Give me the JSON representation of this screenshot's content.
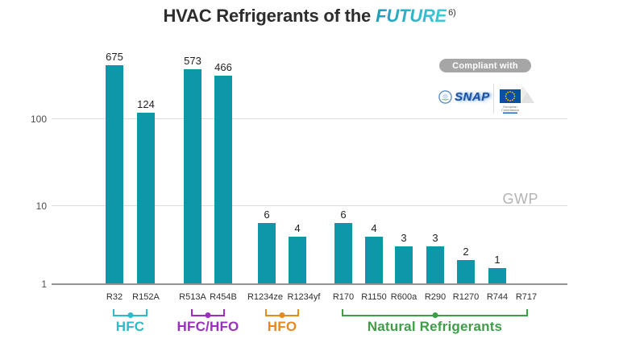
{
  "title": {
    "prefix": "HVAC Refrigerants of the",
    "highlight": "FUTURE",
    "superscript": "6)",
    "highlight_colors": [
      "#1b9dbb",
      "#45c8d8"
    ]
  },
  "badge": {
    "label": "Compliant with"
  },
  "logos": {
    "snap": {
      "label": "SNAP"
    },
    "eu": {
      "caption_line1": "European",
      "caption_line2": "Commission"
    }
  },
  "chart_data": {
    "type": "bar",
    "y_scale": "log",
    "ylabel": "GWP",
    "yticks": [
      1,
      10,
      100
    ],
    "bar_color": "#0e96a9",
    "categories": [
      "R32",
      "R152A",
      "R513A",
      "R454B",
      "R1234ze",
      "R1234yf",
      "R170",
      "R1150",
      "R600a",
      "R290",
      "R1270",
      "R744",
      "R717"
    ],
    "values": [
      675,
      124,
      573,
      466,
      6,
      4,
      6,
      4,
      3,
      3,
      2,
      1,
      null
    ],
    "groups": [
      {
        "label": "HFC",
        "color": "#2ebac6",
        "start": 0,
        "end": 1
      },
      {
        "label": "HFC/HFO",
        "color": "#9b2fc0",
        "start": 2,
        "end": 3
      },
      {
        "label": "HFO",
        "color": "#e8891d",
        "start": 4,
        "end": 5
      },
      {
        "label": "Natural Refrigerants",
        "color": "#3e9e47",
        "start": 6,
        "end": 12
      }
    ]
  }
}
